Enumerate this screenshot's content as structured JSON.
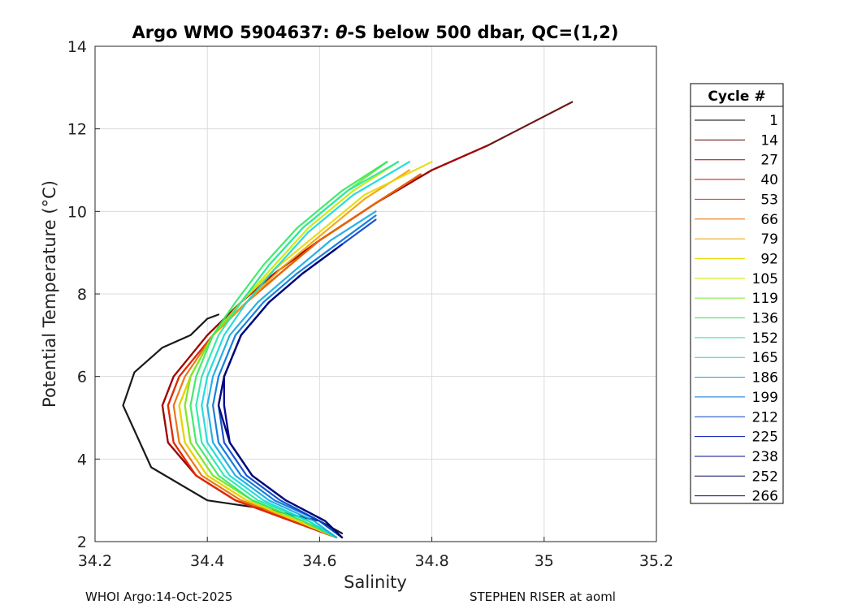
{
  "chart_data": {
    "type": "line",
    "title_prefix": "Argo WMO 5904637: ",
    "title_theta": "θ",
    "title_suffix": "-S below 500 dbar,  QC=(1,2)",
    "xlabel": "Salinity",
    "ylabel_main": "Potential Temperature (",
    "ylabel_unit": "°C",
    "ylabel_close": ")",
    "xlim": [
      34.2,
      35.2
    ],
    "ylim": [
      2,
      14
    ],
    "xticks": [
      "34.2",
      "34.4",
      "34.6",
      "34.8",
      "35",
      "35.2"
    ],
    "yticks": [
      "2",
      "4",
      "6",
      "8",
      "10",
      "12",
      "14"
    ],
    "grid": true,
    "legend": {
      "title": "Cycle #",
      "placement": "right",
      "entries": [
        "1",
        "14",
        "27",
        "40",
        "53",
        "66",
        "79",
        "92",
        "105",
        "119",
        "136",
        "152",
        "165",
        "186",
        "199",
        "212",
        "225",
        "238",
        "252",
        "266"
      ],
      "colors": [
        "#000000",
        "#5a0000",
        "#a80000",
        "#d40000",
        "#e03000",
        "#e86a00",
        "#f0a000",
        "#e8d800",
        "#c8e800",
        "#78e830",
        "#30e860",
        "#20e8a8",
        "#10d8d8",
        "#10a8e0",
        "#0070d8",
        "#0040c8",
        "#0010b0",
        "#000890",
        "#000860",
        "#000880"
      ]
    },
    "series": [
      {
        "name": "1",
        "color": "#000000",
        "s": [
          34.64,
          34.6,
          34.5,
          34.4,
          34.3,
          34.25,
          34.27,
          34.32,
          34.37,
          34.4,
          34.42
        ],
        "t": [
          2.2,
          2.5,
          2.8,
          3.0,
          3.8,
          5.3,
          6.1,
          6.7,
          7.0,
          7.4,
          7.5
        ]
      },
      {
        "name": "14",
        "color": "#5a0000",
        "s": [
          34.63,
          34.55,
          34.45,
          34.38,
          34.33,
          34.32,
          34.34,
          34.4,
          34.46,
          34.52,
          34.6,
          34.7,
          34.8,
          34.9,
          35.05
        ],
        "t": [
          2.1,
          2.5,
          3.0,
          3.6,
          4.4,
          5.3,
          6.0,
          7.0,
          7.8,
          8.5,
          9.3,
          10.2,
          11.0,
          11.6,
          12.65
        ]
      },
      {
        "name": "27",
        "color": "#a80000",
        "s": [
          34.63,
          34.55,
          34.45,
          34.38,
          34.33,
          34.32,
          34.34,
          34.4,
          34.46,
          34.52,
          34.6,
          34.7,
          34.8,
          34.9
        ],
        "t": [
          2.1,
          2.5,
          3.0,
          3.6,
          4.4,
          5.3,
          6.0,
          7.0,
          7.8,
          8.5,
          9.3,
          10.2,
          11.0,
          11.6
        ]
      },
      {
        "name": "40",
        "color": "#d40000",
        "s": [
          34.63,
          34.55,
          34.45,
          34.38,
          34.34,
          34.33,
          34.35,
          34.41,
          34.47,
          34.53,
          34.6,
          34.7,
          34.78
        ],
        "t": [
          2.1,
          2.5,
          3.0,
          3.6,
          4.4,
          5.3,
          6.0,
          7.0,
          7.8,
          8.5,
          9.3,
          10.2,
          10.9
        ]
      },
      {
        "name": "53",
        "color": "#e03000",
        "s": [
          34.63,
          34.55,
          34.45,
          34.38,
          34.34,
          34.33,
          34.35,
          34.41,
          34.47,
          34.53,
          34.6,
          34.7,
          34.78
        ],
        "t": [
          2.1,
          2.5,
          3.0,
          3.6,
          4.4,
          5.3,
          6.0,
          7.0,
          7.8,
          8.5,
          9.3,
          10.2,
          10.9
        ]
      },
      {
        "name": "66",
        "color": "#e86a00",
        "s": [
          34.63,
          34.56,
          34.46,
          34.39,
          34.35,
          34.34,
          34.36,
          34.41,
          34.47,
          34.53,
          34.6,
          34.7,
          34.78
        ],
        "t": [
          2.1,
          2.5,
          3.0,
          3.6,
          4.4,
          5.3,
          6.0,
          7.0,
          7.8,
          8.5,
          9.3,
          10.2,
          10.9
        ]
      },
      {
        "name": "79",
        "color": "#f0a000",
        "s": [
          34.63,
          34.56,
          34.47,
          34.4,
          34.36,
          34.35,
          34.37,
          34.41,
          34.47,
          34.53,
          34.6,
          34.68,
          34.76
        ],
        "t": [
          2.1,
          2.5,
          3.0,
          3.6,
          4.4,
          5.3,
          6.0,
          7.0,
          7.8,
          8.6,
          9.4,
          10.3,
          11.0
        ]
      },
      {
        "name": "92",
        "color": "#e8d800",
        "s": [
          34.63,
          34.56,
          34.47,
          34.4,
          34.36,
          34.35,
          34.37,
          34.41,
          34.46,
          34.52,
          34.6,
          34.68,
          34.8
        ],
        "t": [
          2.1,
          2.5,
          3.0,
          3.6,
          4.4,
          5.3,
          6.0,
          7.0,
          7.8,
          8.6,
          9.5,
          10.4,
          11.2
        ]
      },
      {
        "name": "105",
        "color": "#c8e800",
        "s": [
          34.63,
          34.57,
          34.48,
          34.41,
          34.37,
          34.36,
          34.37,
          34.41,
          34.46,
          34.52,
          34.58,
          34.66,
          34.74
        ],
        "t": [
          2.1,
          2.5,
          3.0,
          3.6,
          4.4,
          5.3,
          6.0,
          7.0,
          7.8,
          8.7,
          9.6,
          10.5,
          11.2
        ]
      },
      {
        "name": "119",
        "color": "#78e830",
        "s": [
          34.63,
          34.57,
          34.48,
          34.41,
          34.37,
          34.36,
          34.37,
          34.41,
          34.46,
          34.51,
          34.57,
          34.65,
          34.72
        ],
        "t": [
          2.1,
          2.5,
          3.0,
          3.6,
          4.4,
          5.3,
          6.0,
          7.0,
          7.8,
          8.7,
          9.6,
          10.5,
          11.2
        ]
      },
      {
        "name": "136",
        "color": "#30e860",
        "s": [
          34.63,
          34.57,
          34.48,
          34.42,
          34.38,
          34.37,
          34.38,
          34.41,
          34.45,
          34.5,
          34.56,
          34.64,
          34.72
        ],
        "t": [
          2.1,
          2.5,
          3.0,
          3.6,
          4.4,
          5.3,
          6.0,
          7.0,
          7.8,
          8.7,
          9.6,
          10.5,
          11.2
        ]
      },
      {
        "name": "152",
        "color": "#20e8a8",
        "s": [
          34.63,
          34.58,
          34.49,
          34.43,
          34.39,
          34.38,
          34.39,
          34.42,
          34.46,
          34.51,
          34.57,
          34.65,
          34.74
        ],
        "t": [
          2.1,
          2.5,
          3.0,
          3.6,
          4.4,
          5.3,
          6.0,
          7.0,
          7.8,
          8.7,
          9.6,
          10.5,
          11.2
        ]
      },
      {
        "name": "165",
        "color": "#10d8d8",
        "s": [
          34.63,
          34.58,
          34.5,
          34.44,
          34.4,
          34.39,
          34.4,
          34.43,
          34.47,
          34.52,
          34.58,
          34.66,
          34.76
        ],
        "t": [
          2.1,
          2.5,
          3.0,
          3.6,
          4.4,
          5.3,
          6.0,
          7.0,
          7.8,
          8.6,
          9.5,
          10.4,
          11.2
        ]
      },
      {
        "name": "186",
        "color": "#10a8e0",
        "s": [
          34.63,
          34.59,
          34.51,
          34.45,
          34.41,
          34.4,
          34.41,
          34.44,
          34.49,
          34.55,
          34.62,
          34.7
        ],
        "t": [
          2.1,
          2.5,
          3.0,
          3.6,
          4.4,
          5.3,
          6.0,
          7.0,
          7.8,
          8.5,
          9.3,
          10.0
        ]
      },
      {
        "name": "199",
        "color": "#0070d8",
        "s": [
          34.64,
          34.6,
          34.52,
          34.46,
          34.42,
          34.41,
          34.42,
          34.45,
          34.5,
          34.56,
          34.63,
          34.7
        ],
        "t": [
          2.1,
          2.5,
          3.0,
          3.6,
          4.4,
          5.3,
          6.0,
          7.0,
          7.8,
          8.5,
          9.2,
          9.9
        ]
      },
      {
        "name": "212",
        "color": "#0040c8",
        "s": [
          34.64,
          34.6,
          34.53,
          34.47,
          34.43,
          34.42,
          34.43,
          34.46,
          34.51,
          34.57,
          34.64,
          34.7
        ],
        "t": [
          2.1,
          2.5,
          3.0,
          3.6,
          4.4,
          5.3,
          6.0,
          7.0,
          7.8,
          8.5,
          9.2,
          9.8
        ]
      },
      {
        "name": "225",
        "color": "#0010b0",
        "s": [
          34.64,
          34.61,
          34.54,
          34.48,
          34.44,
          34.43,
          34.43,
          34.46,
          34.51,
          34.57,
          34.64
        ],
        "t": [
          2.1,
          2.5,
          3.0,
          3.6,
          4.4,
          5.3,
          6.0,
          7.0,
          7.8,
          8.5,
          9.2
        ]
      },
      {
        "name": "238",
        "color": "#000890",
        "s": [
          34.64,
          34.61,
          34.54,
          34.48,
          34.44,
          34.43,
          34.43,
          34.46,
          34.51,
          34.57,
          34.63
        ],
        "t": [
          2.1,
          2.5,
          3.0,
          3.6,
          4.4,
          5.3,
          6.0,
          7.0,
          7.8,
          8.5,
          9.1
        ]
      },
      {
        "name": "252",
        "color": "#000860",
        "s": [
          34.64,
          34.61,
          34.54,
          34.48,
          34.44,
          34.42,
          34.43,
          34.46,
          34.51,
          34.57,
          34.63
        ],
        "t": [
          2.1,
          2.5,
          3.0,
          3.6,
          4.4,
          5.3,
          6.0,
          7.0,
          7.8,
          8.5,
          9.1
        ]
      },
      {
        "name": "266",
        "color": "#000880",
        "s": [
          34.64,
          34.61,
          34.54,
          34.48,
          34.44,
          34.42,
          34.43,
          34.46,
          34.51,
          34.57,
          34.63
        ],
        "t": [
          2.1,
          2.5,
          3.0,
          3.6,
          4.4,
          5.3,
          6.0,
          7.0,
          7.8,
          8.5,
          9.1
        ]
      }
    ]
  },
  "footer": {
    "left": "WHOI Argo:14-Oct-2025",
    "right": "STEPHEN RISER at aoml"
  }
}
